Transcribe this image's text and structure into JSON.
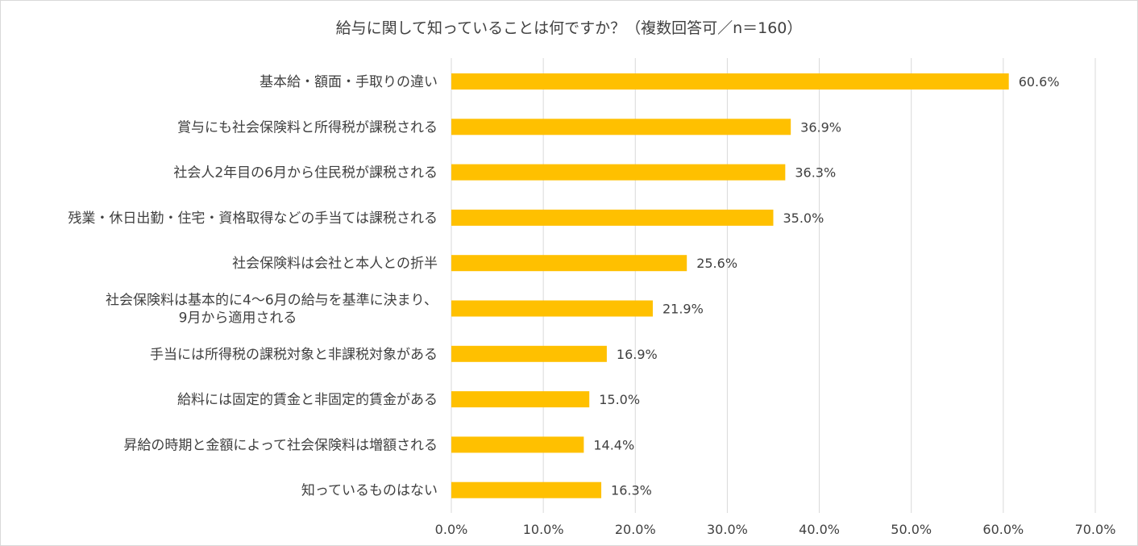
{
  "title": "給与に関して知っていることは何ですか？（複数回答可／n＝160）",
  "colors": {
    "bar": "#FFC000",
    "grid": "#d9d9d9",
    "text": "#404040"
  },
  "chart_data": {
    "type": "bar",
    "orientation": "horizontal",
    "title": "給与に関して知っていることは何ですか？（複数回答可／n＝160）",
    "xlabel": "",
    "ylabel": "",
    "xlim": [
      0,
      70
    ],
    "grid": true,
    "categories": [
      [
        "基本給・額面・手取りの違い"
      ],
      [
        "賞与にも社会保険料と所得税が課税される"
      ],
      [
        "社会人2年目の6月から住民税が課税される"
      ],
      [
        "残業・休日出勤・住宅・資格取得などの手当ては課税される"
      ],
      [
        "社会保険料は会社と本人との折半"
      ],
      [
        "社会保険料は基本的に4～6月の給与を基準に決まり、",
        "9月から適用される"
      ],
      [
        "手当には所得税の課税対象と非課税対象がある"
      ],
      [
        "給料には固定的賃金と非固定的賃金がある"
      ],
      [
        "昇給の時期と金額によって社会保険料は増額される"
      ],
      [
        "知っているものはない"
      ]
    ],
    "values": [
      60.6,
      36.9,
      36.3,
      35.0,
      25.6,
      21.9,
      16.9,
      15.0,
      14.4,
      16.3
    ],
    "value_labels": [
      "60.6%",
      "36.9%",
      "36.3%",
      "35.0%",
      "25.6%",
      "21.9%",
      "16.9%",
      "15.0%",
      "14.4%",
      "16.3%"
    ],
    "ticks": [
      0,
      10,
      20,
      30,
      40,
      50,
      60,
      70
    ],
    "tick_labels": [
      "0.0%",
      "10.0%",
      "20.0%",
      "30.0%",
      "40.0%",
      "50.0%",
      "60.0%",
      "70.0%"
    ]
  }
}
